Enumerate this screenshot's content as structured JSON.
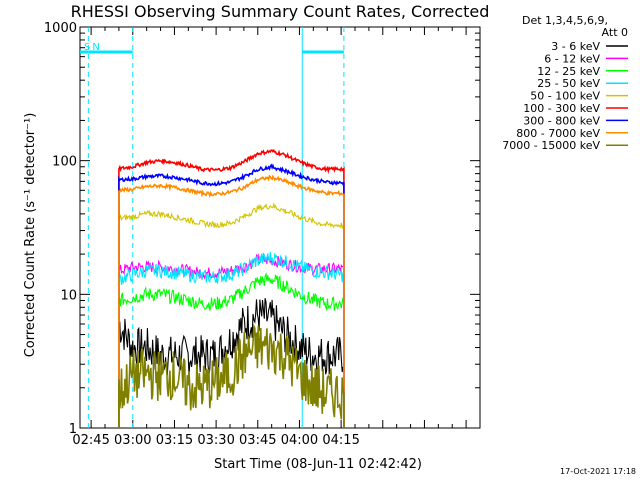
{
  "chart_data": {
    "type": "line",
    "title": "RHESSI Observing Summary Count Rates, Corrected",
    "xlabel": "Start Time (08-Jun-11 02:42:42)",
    "ylabel": "Corrected Count Rate (s⁻¹ detector⁻¹)",
    "yscale": "log",
    "xlim_minutes": [
      -19,
      125
    ],
    "ylim": [
      1,
      1000
    ],
    "x_ticks": [
      "02:45",
      "03:00",
      "03:15",
      "03:30",
      "03:45",
      "04:00",
      "04:15"
    ],
    "x_tick_minutes": [
      -15,
      0,
      15,
      30,
      45,
      60,
      75
    ],
    "y_ticks": [
      "1",
      "10",
      "100",
      "1000"
    ],
    "y_tick_values": [
      1,
      10,
      100,
      1000
    ],
    "legend_header": [
      "Det 1,3,4,5,6,9,",
      "Att 0"
    ],
    "legend_position": "right",
    "data_window_minutes": [
      -5,
      76
    ],
    "x_minutes": [
      -5,
      0,
      5,
      10,
      15,
      20,
      25,
      30,
      35,
      40,
      45,
      50,
      55,
      60,
      65,
      70,
      75,
      76
    ],
    "series": [
      {
        "name": "3 - 6 keV",
        "color": "#000000",
        "values": [
          6,
          4,
          4,
          3.5,
          3.5,
          3.5,
          3.5,
          3.5,
          4.5,
          6,
          7,
          6.5,
          5,
          4,
          3.5,
          3.5,
          3.5,
          3.5
        ]
      },
      {
        "name": "6 - 12 keV",
        "color": "#ff00ff",
        "values": [
          15,
          16,
          16,
          16,
          15.5,
          15,
          14.5,
          14.5,
          15,
          16,
          18,
          18,
          17,
          16,
          15.5,
          15.5,
          15.5,
          15
        ]
      },
      {
        "name": "12 - 25 keV",
        "color": "#00ff00",
        "values": [
          9,
          9.5,
          10,
          10,
          9.5,
          9,
          8.5,
          8.5,
          9,
          10.5,
          12.5,
          13,
          11.5,
          10,
          9,
          8.5,
          8.5,
          8.5
        ]
      },
      {
        "name": "25 - 50 keV",
        "color": "#00e5ff",
        "values": [
          13,
          14,
          15,
          15,
          14.5,
          14,
          13.5,
          13.5,
          14,
          15.5,
          18,
          19,
          17.5,
          16,
          15,
          14.5,
          14,
          13.5
        ]
      },
      {
        "name": "50 - 100 keV",
        "color": "#d4c400",
        "values": [
          37,
          38,
          40,
          40,
          38,
          36,
          34,
          33,
          34,
          38,
          44,
          46,
          42,
          38,
          35,
          33,
          33,
          32
        ]
      },
      {
        "name": "100 - 300 keV",
        "color": "#ff0000",
        "values": [
          87,
          90,
          97,
          100,
          97,
          92,
          86,
          85,
          88,
          98,
          113,
          118,
          110,
          98,
          90,
          86,
          87,
          85
        ]
      },
      {
        "name": "300 - 800 keV",
        "color": "#0000ff",
        "values": [
          72,
          73,
          76,
          77,
          75,
          72,
          68,
          67,
          69,
          76,
          86,
          90,
          84,
          77,
          72,
          69,
          68,
          68
        ]
      },
      {
        "name": "800 - 7000 keV",
        "color": "#ff8c00",
        "values": [
          60,
          61,
          64,
          65,
          63,
          60,
          57,
          56,
          58,
          63,
          72,
          75,
          70,
          64,
          60,
          57,
          57,
          56
        ]
      },
      {
        "name": "7000 - 15000 keV",
        "color": "#808000",
        "values": [
          1.8,
          2.5,
          2.5,
          2.5,
          2.5,
          2,
          2,
          2.2,
          2.5,
          3.5,
          4,
          4,
          3.5,
          2.5,
          2,
          1.8,
          1.8,
          1.8
        ]
      }
    ],
    "flags": [
      {
        "label": "S",
        "start_min": -19,
        "end_min": -16,
        "level": 650
      },
      {
        "label": "N",
        "start_min": -16,
        "end_min": 0,
        "level": 650
      },
      {
        "label": "",
        "start_min": 61,
        "end_min": 76,
        "level": 650
      }
    ],
    "vlines_minutes": [
      -16,
      0,
      61,
      76
    ],
    "timestamp": "17-Oct-2021 17:18"
  }
}
